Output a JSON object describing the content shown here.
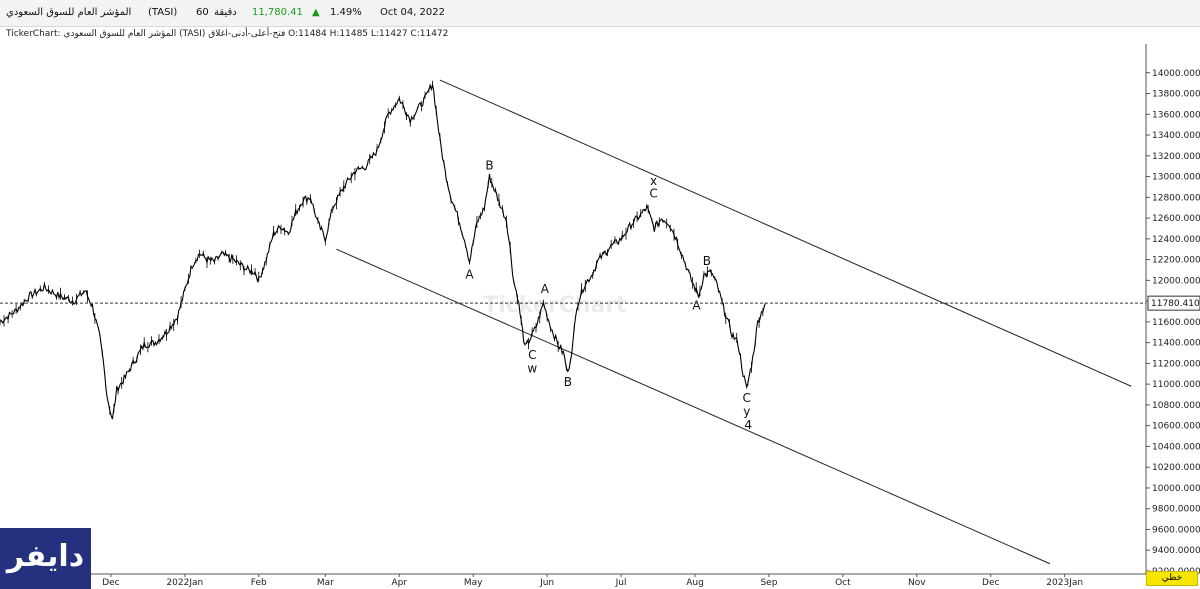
{
  "header": {
    "symbol_name": "المؤشر العام للسوق السعودي",
    "symbol_code": "(TASI)",
    "interval_value": "60",
    "interval_unit": "دقيقة",
    "price": "11,780.41",
    "change_arrow": "▲",
    "change_pct": "1.49%",
    "date": "Oct 04, 2022",
    "up_color": "#1a9a1a"
  },
  "info_line": "TickerChart: المؤشر العام للسوق السعودي (TASI) فتح-أعلى-أدنى-اغلاق O:11484 H:11485 L:11427 C:11472",
  "watermark": "TickerChart",
  "brand": {
    "label": "دايفر",
    "bg_color": "#25317e"
  },
  "scale_type": "خطي",
  "chart_data": {
    "type": "line",
    "style": "ohlc-bars",
    "title": "",
    "xlabel": "",
    "ylabel": "",
    "ylim": [
      9200,
      14200
    ],
    "y_ticks": [
      "14000.0000",
      "13800.0000",
      "13600.0000",
      "13400.0000",
      "13200.0000",
      "13000.0000",
      "12800.0000",
      "12600.0000",
      "12400.0000",
      "12200.0000",
      "12000.0000",
      "11800.0000",
      "11600.0000",
      "11400.0000",
      "11200.0000",
      "11000.0000",
      "10800.0000",
      "10600.0000",
      "10400.0000",
      "10200.0000",
      "10000.0000",
      "9800.0000",
      "9600.0000",
      "9400.0000",
      "9200.0000"
    ],
    "x_ticks": [
      {
        "label": "Dec",
        "t": 0.6
      },
      {
        "label": "2022Jan",
        "t": 1.6
      },
      {
        "label": "Feb",
        "t": 2.6
      },
      {
        "label": "Mar",
        "t": 3.5
      },
      {
        "label": "Apr",
        "t": 4.5
      },
      {
        "label": "May",
        "t": 5.5
      },
      {
        "label": "Jun",
        "t": 6.5
      },
      {
        "label": "Jul",
        "t": 7.5
      },
      {
        "label": "Aug",
        "t": 8.5
      },
      {
        "label": "Sep",
        "t": 9.5
      },
      {
        "label": "Oct",
        "t": 10.5
      },
      {
        "label": "Nov",
        "t": 11.5
      },
      {
        "label": "Dec",
        "t": 12.5
      },
      {
        "label": "2023Jan",
        "t": 13.5
      }
    ],
    "last_price_label": "11780.4102",
    "last_price": 11780.41,
    "series": [
      {
        "points": [
          [
            -0.9,
            11600
          ],
          [
            -0.7,
            11700
          ],
          [
            -0.5,
            11850
          ],
          [
            -0.3,
            11930
          ],
          [
            -0.1,
            11850
          ],
          [
            0.1,
            11800
          ],
          [
            0.25,
            11900
          ],
          [
            0.35,
            11750
          ],
          [
            0.45,
            11450
          ],
          [
            0.5,
            11200
          ],
          [
            0.55,
            10880
          ],
          [
            0.62,
            10650
          ],
          [
            0.68,
            10950
          ],
          [
            0.78,
            11050
          ],
          [
            0.9,
            11200
          ],
          [
            1.05,
            11380
          ],
          [
            1.2,
            11400
          ],
          [
            1.35,
            11500
          ],
          [
            1.5,
            11650
          ],
          [
            1.6,
            11900
          ],
          [
            1.7,
            12150
          ],
          [
            1.8,
            12260
          ],
          [
            1.9,
            12200
          ],
          [
            2.0,
            12180
          ],
          [
            2.1,
            12250
          ],
          [
            2.25,
            12200
          ],
          [
            2.35,
            12150
          ],
          [
            2.45,
            12100
          ],
          [
            2.55,
            12080
          ],
          [
            2.6,
            12000
          ],
          [
            2.7,
            12200
          ],
          [
            2.8,
            12450
          ],
          [
            2.9,
            12520
          ],
          [
            3.0,
            12460
          ],
          [
            3.1,
            12650
          ],
          [
            3.2,
            12780
          ],
          [
            3.3,
            12800
          ],
          [
            3.4,
            12550
          ],
          [
            3.5,
            12400
          ],
          [
            3.6,
            12700
          ],
          [
            3.75,
            12900
          ],
          [
            3.9,
            13050
          ],
          [
            4.05,
            13100
          ],
          [
            4.2,
            13250
          ],
          [
            4.35,
            13600
          ],
          [
            4.5,
            13750
          ],
          [
            4.65,
            13550
          ],
          [
            4.75,
            13650
          ],
          [
            4.85,
            13750
          ],
          [
            4.95,
            13900
          ],
          [
            5.0,
            13630
          ],
          [
            5.05,
            13350
          ],
          [
            5.12,
            13050
          ],
          [
            5.2,
            12800
          ],
          [
            5.3,
            12600
          ],
          [
            5.4,
            12350
          ],
          [
            5.45,
            12180
          ],
          [
            5.55,
            12550
          ],
          [
            5.65,
            12700
          ],
          [
            5.72,
            13000
          ],
          [
            5.8,
            12850
          ],
          [
            5.88,
            12700
          ],
          [
            5.95,
            12580
          ],
          [
            6.0,
            12300
          ],
          [
            6.05,
            11980
          ],
          [
            6.1,
            11850
          ],
          [
            6.15,
            11600
          ],
          [
            6.2,
            11350
          ],
          [
            6.28,
            11450
          ],
          [
            6.35,
            11550
          ],
          [
            6.45,
            11780
          ],
          [
            6.55,
            11550
          ],
          [
            6.65,
            11380
          ],
          [
            6.72,
            11300
          ],
          [
            6.78,
            11100
          ],
          [
            6.85,
            11400
          ],
          [
            6.9,
            11750
          ],
          [
            7.0,
            11950
          ],
          [
            7.1,
            12050
          ],
          [
            7.2,
            12200
          ],
          [
            7.35,
            12320
          ],
          [
            7.5,
            12400
          ],
          [
            7.65,
            12550
          ],
          [
            7.75,
            12620
          ],
          [
            7.85,
            12700
          ],
          [
            7.95,
            12500
          ],
          [
            8.05,
            12600
          ],
          [
            8.15,
            12550
          ],
          [
            8.25,
            12400
          ],
          [
            8.35,
            12200
          ],
          [
            8.45,
            12000
          ],
          [
            8.55,
            11850
          ],
          [
            8.62,
            12050
          ],
          [
            8.72,
            12080
          ],
          [
            8.8,
            11950
          ],
          [
            8.9,
            11700
          ],
          [
            9.0,
            11480
          ],
          [
            9.08,
            11400
          ],
          [
            9.15,
            11100
          ],
          [
            9.2,
            10950
          ],
          [
            9.28,
            11250
          ],
          [
            9.35,
            11600
          ],
          [
            9.45,
            11780
          ]
        ]
      }
    ],
    "trendlines": [
      {
        "from": [
          5.05,
          13930
        ],
        "to": [
          14.4,
          10980
        ]
      },
      {
        "from": [
          3.65,
          12300
        ],
        "to": [
          13.3,
          9270
        ]
      }
    ],
    "annotations": [
      {
        "text": "B",
        "t": 5.72,
        "v": 13070
      },
      {
        "text": "A",
        "t": 5.45,
        "v": 12020
      },
      {
        "text": "A",
        "t": 6.47,
        "v": 11880
      },
      {
        "text": "C",
        "t": 6.3,
        "v": 11240
      },
      {
        "text": "w",
        "t": 6.3,
        "v": 11110
      },
      {
        "text": "B",
        "t": 6.78,
        "v": 10980
      },
      {
        "text": "x",
        "t": 7.94,
        "v": 12920
      },
      {
        "text": "C",
        "t": 7.94,
        "v": 12800
      },
      {
        "text": "B",
        "t": 8.66,
        "v": 12150
      },
      {
        "text": "A",
        "t": 8.52,
        "v": 11720
      },
      {
        "text": "C",
        "t": 9.2,
        "v": 10830
      },
      {
        "text": "y",
        "t": 9.2,
        "v": 10700
      },
      {
        "text": "4",
        "t": 9.22,
        "v": 10570
      }
    ]
  }
}
